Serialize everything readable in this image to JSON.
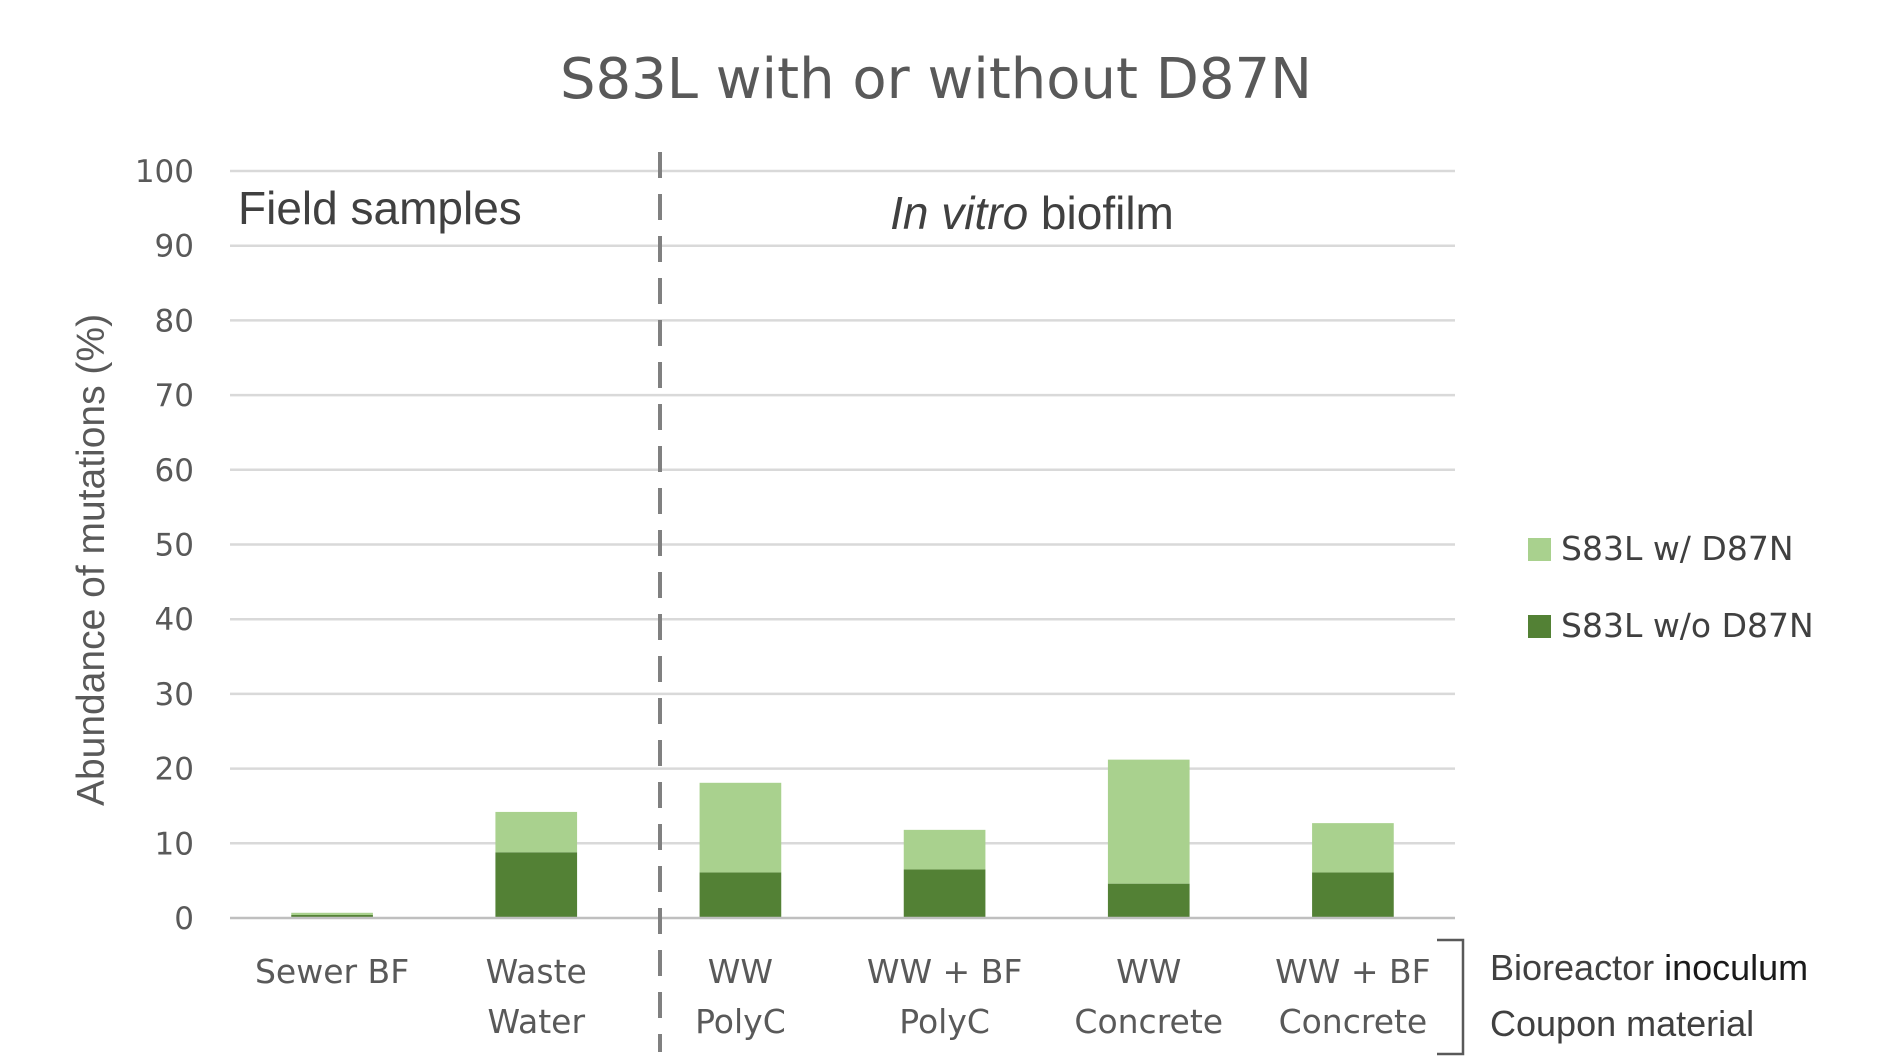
{
  "chart_data": {
    "type": "bar",
    "stacked": true,
    "title": "S83L with or without D87N",
    "xlabel": "",
    "ylabel": "Abundance of mutations (%)",
    "ylim": [
      0,
      100
    ],
    "yticks": [
      0,
      10,
      20,
      30,
      40,
      50,
      60,
      70,
      80,
      90,
      100
    ],
    "grid": true,
    "legend_position": "right",
    "categories": [
      [
        "Sewer BF"
      ],
      [
        "Waste",
        "Water"
      ],
      [
        "WW",
        "PolyC"
      ],
      [
        "WW + BF",
        "PolyC"
      ],
      [
        "WW",
        "Concrete"
      ],
      [
        "WW + BF",
        "Concrete"
      ]
    ],
    "series": [
      {
        "name": "S83L w/o D87N",
        "color": "#538135",
        "values": [
          0.4,
          8.8,
          6.1,
          6.5,
          4.6,
          6.1
        ]
      },
      {
        "name": "S83L w/ D87N",
        "color": "#a9d18e",
        "values": [
          0.3,
          5.4,
          12.0,
          5.3,
          16.6,
          6.6
        ]
      }
    ],
    "regions": [
      {
        "label": "Field samples",
        "italic_part": "",
        "rest": ""
      },
      {
        "label": "",
        "italic_part": "In vitro",
        "rest": " biofilm"
      }
    ],
    "row_labels": [
      {
        "prefix": "Bioreactor ",
        "emph": "inoculum"
      },
      {
        "prefix": "Coupon material",
        "emph": ""
      }
    ]
  }
}
